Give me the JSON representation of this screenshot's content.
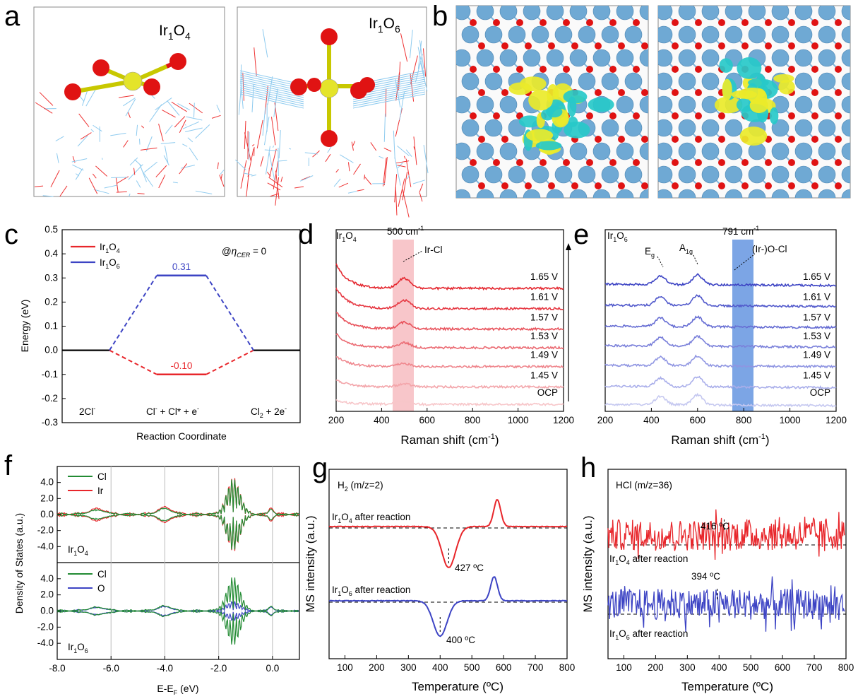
{
  "panels": {
    "a": {
      "label": "a",
      "left_title": "Ir1O4",
      "right_title": "Ir1O6"
    },
    "b": {
      "label": "b"
    },
    "c": {
      "label": "c"
    },
    "d": {
      "label": "d"
    },
    "e": {
      "label": "e"
    },
    "f": {
      "label": "f"
    },
    "g": {
      "label": "g"
    },
    "h": {
      "label": "h"
    }
  },
  "colors": {
    "red": "#e8262b",
    "blue": "#3d44c4",
    "black": "#000000",
    "green": "#228b33",
    "pink_band": "#f6b3b8",
    "blue_band": "#5b8fde",
    "ir_atom": "#6fa9d4",
    "o_atom": "#e01313",
    "y_iso": "#eaea2a",
    "c_iso": "#27c9c9"
  },
  "chart_data": [
    {
      "id": "c",
      "type": "line",
      "title": "",
      "xlabel": "Reaction Coordinate",
      "ylabel": "Energy (eV)",
      "ylim": [
        -0.3,
        0.5
      ],
      "yticks": [
        "-0.3",
        "-0.2",
        "-0.1",
        "0.0",
        "0.1",
        "0.2",
        "0.3",
        "0.4",
        "0.5"
      ],
      "categories": [
        "2Cl-",
        "Cl- + Cl* + e-",
        "Cl2 + 2e-"
      ],
      "series": [
        {
          "name": "Ir1O4",
          "values": [
            0.0,
            -0.1,
            0.0
          ]
        },
        {
          "name": "Ir1O6",
          "values": [
            0.0,
            0.31,
            0.0
          ]
        }
      ],
      "value_labels": {
        "Ir1O4": "-0.10",
        "Ir1O6": "0.31"
      },
      "annotation": "@ηCER = 0",
      "legend_position": "top-left"
    },
    {
      "id": "d",
      "type": "line",
      "xlabel": "Raman shift (cm-1)",
      "ylabel": "",
      "xlim": [
        200,
        1200
      ],
      "xticks": [
        "200",
        "400",
        "600",
        "800",
        "1000",
        "1200"
      ],
      "sample": "Ir1O4",
      "band_center": 500,
      "band_label": "500 cm-1",
      "peak_label": "Ir-Cl",
      "series": [
        {
          "name": "OCP",
          "offset": 0.0
        },
        {
          "name": "1.45 V",
          "offset": 0.12
        },
        {
          "name": "1.49 V",
          "offset": 0.26
        },
        {
          "name": "1.53 V",
          "offset": 0.39
        },
        {
          "name": "1.57 V",
          "offset": 0.52
        },
        {
          "name": "1.61 V",
          "offset": 0.66
        },
        {
          "name": "1.65 V",
          "offset": 0.8
        }
      ]
    },
    {
      "id": "e",
      "type": "line",
      "xlabel": "Raman shift (cm-1)",
      "ylabel": "",
      "xlim": [
        200,
        1200
      ],
      "xticks": [
        "200",
        "400",
        "600",
        "800",
        "1000",
        "1200"
      ],
      "sample": "Ir1O6",
      "band_center": 791,
      "band_label": "791 cm-1",
      "peak_labels": [
        "Eg",
        "A1g",
        "(Ir-)O-Cl"
      ],
      "series": [
        {
          "name": "OCP",
          "offset": 0.0
        },
        {
          "name": "1.45 V",
          "offset": 0.12
        },
        {
          "name": "1.49 V",
          "offset": 0.26
        },
        {
          "name": "1.53 V",
          "offset": 0.39
        },
        {
          "name": "1.57 V",
          "offset": 0.52
        },
        {
          "name": "1.61 V",
          "offset": 0.66
        },
        {
          "name": "1.65 V",
          "offset": 0.8
        }
      ]
    },
    {
      "id": "f",
      "type": "line",
      "xlabel": "E-EF (eV)",
      "ylabel": "Density of States (a.u.)",
      "xlim": [
        -8.0,
        1.0
      ],
      "xticks": [
        "-8.0",
        "-6.0",
        "-4.0",
        "-2.0",
        "0.0"
      ],
      "top": {
        "sample": "Ir1O4",
        "ylim": [
          -6,
          6
        ],
        "yticks": [
          "4.0",
          "2.0",
          "0.0",
          "-2.0",
          "-4.0"
        ],
        "legend": [
          "Cl",
          "Ir"
        ]
      },
      "bottom": {
        "sample": "Ir1O6",
        "ylim": [
          -6,
          6
        ],
        "yticks": [
          "4.0",
          "2.0",
          "0.0",
          "-2.0",
          "-4.0"
        ],
        "legend": [
          "Cl",
          "O"
        ]
      }
    },
    {
      "id": "g",
      "type": "line",
      "title": "H2 (m/z=2)",
      "xlabel": "Temperature (ºC)",
      "ylabel": "MS intensity (a.u.)",
      "xlim": [
        50,
        800
      ],
      "xticks": [
        "100",
        "200",
        "300",
        "400",
        "500",
        "600",
        "700",
        "800"
      ],
      "series": [
        {
          "name": "Ir1O4 after reaction",
          "min_temp": 427,
          "min_label": "427 ºC",
          "peak_temp": 580
        },
        {
          "name": "Ir1O6 after reaction",
          "min_temp": 400,
          "min_label": "400 ºC",
          "peak_temp": 570
        }
      ]
    },
    {
      "id": "h",
      "type": "line",
      "title": "HCl (m/z=36)",
      "xlabel": "Temperature (ºC)",
      "ylabel": "MS intensity (a.u.)",
      "xlim": [
        50,
        800
      ],
      "xticks": [
        "100",
        "200",
        "300",
        "400",
        "500",
        "600",
        "700",
        "800"
      ],
      "series": [
        {
          "name": "Ir1O4 after reaction",
          "mark_temp": 416,
          "mark_label": "416 ºC"
        },
        {
          "name": "Ir1O6 after reaction",
          "mark_temp": 394,
          "mark_label": "394 ºC"
        }
      ]
    }
  ],
  "texts": {
    "c_leg1": "Ir1O4",
    "c_leg2": "Ir1O6",
    "arrow_up": "increasing potential"
  }
}
